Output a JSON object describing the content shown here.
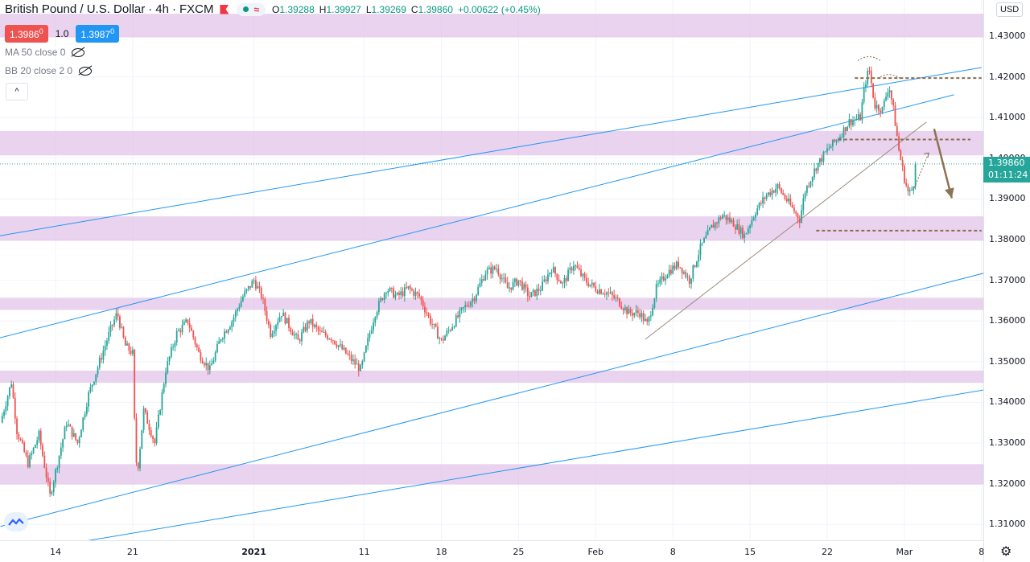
{
  "header": {
    "symbol_name": "British Pound / U.S. Dollar",
    "timeframe": "4h",
    "exchange": "FXCM",
    "wave_icon": "≈",
    "ohlc": {
      "o_label": "O",
      "o": "1.39288",
      "h_label": "H",
      "h": "1.39927",
      "l_label": "L",
      "l": "1.39269",
      "c_label": "C",
      "c": "1.39860",
      "change": "+0.00622 (+0.45%)"
    }
  },
  "quote": {
    "sell": "1.3986",
    "sell_sup": "0",
    "qty": "1.0",
    "buy": "1.3987",
    "buy_sup": "0"
  },
  "indicators": [
    {
      "label": "MA 50 close 0"
    },
    {
      "label": "BB 20 close 2 0"
    }
  ],
  "collapse_icon": "^",
  "currency": "USD",
  "last_price": {
    "price": "1.39860",
    "countdown": "01:11:24"
  },
  "colors": {
    "up": "#26a69a",
    "down": "#ef5350",
    "zone": "#e1c4ea",
    "trendline": "#2196f3",
    "dashed": "#8b6f4e",
    "arrow": "#8b7355",
    "last_price": "#26a69a"
  },
  "chart_data": {
    "type": "candlestick",
    "symbol": "British Pound / U.S. Dollar",
    "timeframe": "4h",
    "y_ticks": [
      1.43,
      1.42,
      1.41,
      1.4,
      1.39,
      1.38,
      1.37,
      1.36,
      1.35,
      1.34,
      1.33,
      1.32,
      1.31
    ],
    "y_tick_labels": [
      "1.43000",
      "1.42000",
      "1.41000",
      "1.40000",
      "1.39000",
      "1.38000",
      "1.37000",
      "1.36000",
      "1.35000",
      "1.34000",
      "1.33000",
      "1.32000",
      "1.31000"
    ],
    "ylim": [
      1.3055,
      1.4355
    ],
    "x_ticks": [
      {
        "label": "14",
        "day": 0
      },
      {
        "label": "21",
        "day": 7
      },
      {
        "label": "2021",
        "day": 18,
        "bold": true
      },
      {
        "label": "11",
        "day": 28
      },
      {
        "label": "18",
        "day": 35
      },
      {
        "label": "25",
        "day": 42
      },
      {
        "label": "Feb",
        "day": 49,
        "bold": false
      },
      {
        "label": "8",
        "day": 56
      },
      {
        "label": "15",
        "day": 63
      },
      {
        "label": "22",
        "day": 70
      },
      {
        "label": "Mar",
        "day": 77
      },
      {
        "label": "8",
        "day": 84
      }
    ],
    "price_path": [
      [
        -5,
        1.335
      ],
      [
        -4,
        1.345
      ],
      [
        -3.5,
        1.333
      ],
      [
        -2.5,
        1.325
      ],
      [
        -1.5,
        1.332
      ],
      [
        -0.5,
        1.317
      ],
      [
        0,
        1.323
      ],
      [
        1,
        1.335
      ],
      [
        2,
        1.33
      ],
      [
        3,
        1.342
      ],
      [
        4,
        1.35
      ],
      [
        5,
        1.358
      ],
      [
        5.6,
        1.362
      ],
      [
        6.3,
        1.354
      ],
      [
        7,
        1.352
      ],
      [
        7.2,
        1.332
      ],
      [
        7.4,
        1.322
      ],
      [
        8,
        1.338
      ],
      [
        9,
        1.33
      ],
      [
        10,
        1.348
      ],
      [
        11,
        1.357
      ],
      [
        12,
        1.36
      ],
      [
        13,
        1.352
      ],
      [
        14,
        1.348
      ],
      [
        15,
        1.356
      ],
      [
        16,
        1.36
      ],
      [
        17,
        1.366
      ],
      [
        18,
        1.37
      ],
      [
        18.7,
        1.366
      ],
      [
        19.5,
        1.357
      ],
      [
        20.5,
        1.362
      ],
      [
        22,
        1.355
      ],
      [
        23,
        1.36
      ],
      [
        24,
        1.357
      ],
      [
        25,
        1.356
      ],
      [
        26,
        1.353
      ],
      [
        27,
        1.35
      ],
      [
        27.7,
        1.348
      ],
      [
        28.5,
        1.357
      ],
      [
        29,
        1.362
      ],
      [
        30,
        1.368
      ],
      [
        31,
        1.366
      ],
      [
        32,
        1.368
      ],
      [
        33,
        1.366
      ],
      [
        34,
        1.36
      ],
      [
        35,
        1.355
      ],
      [
        36,
        1.359
      ],
      [
        37,
        1.363
      ],
      [
        38,
        1.366
      ],
      [
        39,
        1.372
      ],
      [
        40,
        1.373
      ],
      [
        41,
        1.368
      ],
      [
        42,
        1.37
      ],
      [
        43,
        1.366
      ],
      [
        44,
        1.368
      ],
      [
        45,
        1.373
      ],
      [
        46,
        1.369
      ],
      [
        47,
        1.374
      ],
      [
        48,
        1.37
      ],
      [
        49,
        1.368
      ],
      [
        50,
        1.367
      ],
      [
        51,
        1.365
      ],
      [
        52,
        1.362
      ],
      [
        53,
        1.362
      ],
      [
        53.7,
        1.359
      ],
      [
        54.5,
        1.368
      ],
      [
        55.5,
        1.372
      ],
      [
        56.5,
        1.374
      ],
      [
        57.5,
        1.37
      ],
      [
        58.5,
        1.378
      ],
      [
        59.5,
        1.383
      ],
      [
        60.5,
        1.386
      ],
      [
        61.5,
        1.384
      ],
      [
        62.5,
        1.381
      ],
      [
        63.5,
        1.387
      ],
      [
        64.5,
        1.391
      ],
      [
        65.5,
        1.393
      ],
      [
        66.5,
        1.389
      ],
      [
        67.5,
        1.385
      ],
      [
        68,
        1.392
      ],
      [
        69,
        1.398
      ],
      [
        70,
        1.402
      ],
      [
        71,
        1.405
      ],
      [
        72,
        1.409
      ],
      [
        73,
        1.41
      ],
      [
        73.4,
        1.418
      ],
      [
        73.8,
        1.422
      ],
      [
        74.3,
        1.413
      ],
      [
        75,
        1.412
      ],
      [
        75.6,
        1.418
      ],
      [
        76,
        1.412
      ],
      [
        76.5,
        1.402
      ],
      [
        77,
        1.395
      ],
      [
        77.4,
        1.391
      ],
      [
        77.8,
        1.393
      ],
      [
        78,
        1.3986
      ]
    ],
    "horizontal_zones": [
      {
        "from": 1.4297,
        "to": 1.4355
      },
      {
        "from": 1.4007,
        "to": 1.4067
      },
      {
        "from": 1.3797,
        "to": 1.3857
      },
      {
        "from": 1.3627,
        "to": 1.3657
      },
      {
        "from": 1.3448,
        "to": 1.3478
      },
      {
        "from": 1.3198,
        "to": 1.3248
      }
    ],
    "channel_lines": [
      {
        "from": [
          -6,
          1.3805
        ],
        "to": [
          84,
          1.4223
        ]
      },
      {
        "from": [
          -6,
          1.3552
        ],
        "to": [
          81.5,
          1.4156
        ]
      },
      {
        "from": [
          -5,
          1.3095
        ],
        "to": [
          85,
          1.3723
        ]
      },
      {
        "from": [
          2.5,
          1.3058
        ],
        "to": [
          85,
          1.3434
        ]
      }
    ],
    "support_trendline": {
      "from": [
        53.5,
        1.3555
      ],
      "to": [
        79,
        1.4089
      ]
    },
    "dashed_levels": [
      {
        "price": 1.4197,
        "from_day": 72.5,
        "to_day": 84
      },
      {
        "price": 1.4046,
        "from_day": 71,
        "to_day": 83
      },
      {
        "price": 1.3822,
        "from_day": 69,
        "to_day": 84
      }
    ],
    "forecast_arrow": {
      "from": [
        79.7,
        1.4072
      ],
      "to": [
        81.3,
        1.3902
      ]
    },
    "dotted_arrow": {
      "from": [
        77.8,
        1.392
      ],
      "to": [
        79.2,
        1.4013
      ]
    },
    "last_price": 1.3986
  }
}
